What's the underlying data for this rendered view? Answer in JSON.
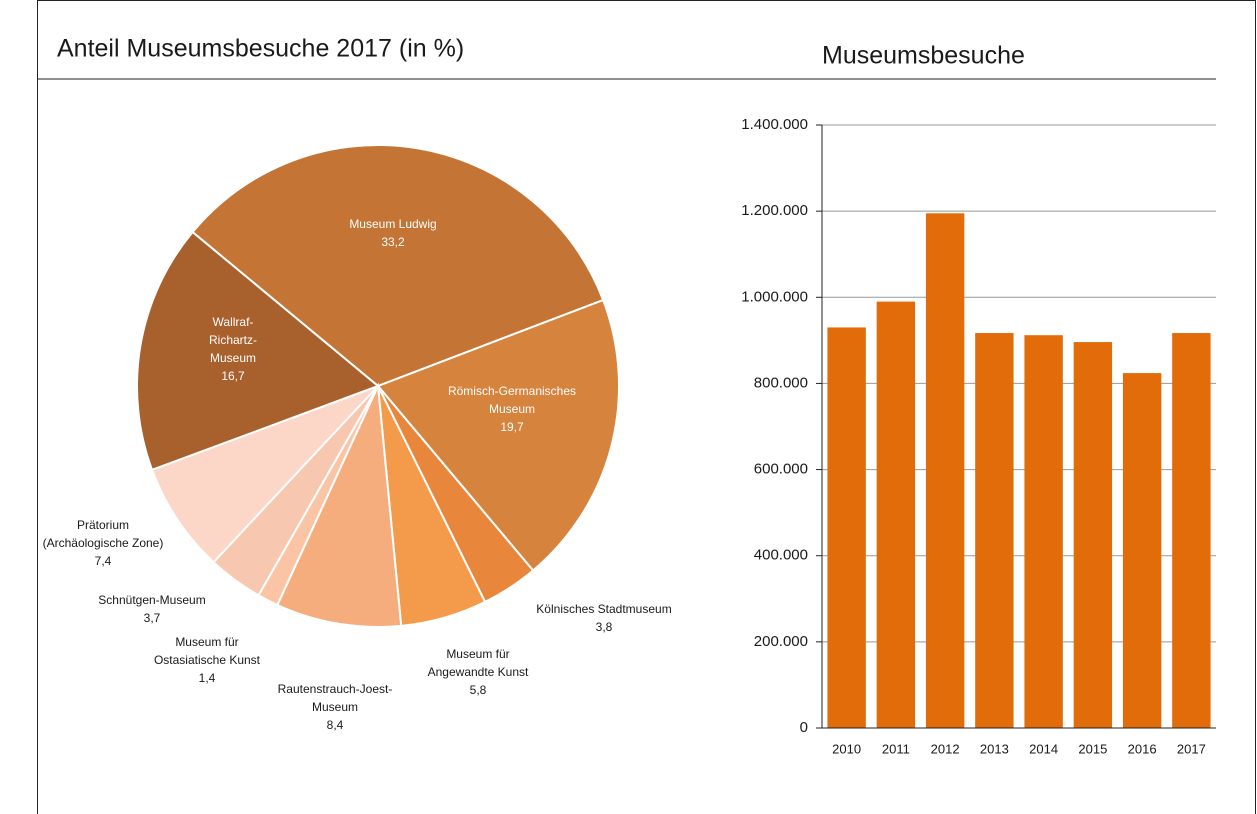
{
  "chart_data": [
    {
      "type": "pie",
      "title": "Anteil Museumsbesuche 2017 (in %)",
      "categories": [
        [
          "Museum Ludwig"
        ],
        [
          "Römisch-Germanisches",
          "Museum"
        ],
        [
          "Kölnisches Stadtmuseum"
        ],
        [
          "Museum für",
          "Angewandte Kunst"
        ],
        [
          "Rautenstrauch-Joest-",
          "Museum"
        ],
        [
          "Museum für",
          "Ostasiatische Kunst"
        ],
        [
          "Schnütgen-Museum"
        ],
        [
          "Prätorium",
          "(Archäologische Zone)"
        ],
        [
          "Wallraf-",
          "Richartz-",
          "Museum"
        ]
      ],
      "values": [
        33.2,
        19.7,
        3.8,
        5.8,
        8.4,
        1.4,
        3.7,
        7.4,
        16.7
      ],
      "value_labels": [
        "33,2",
        "19,7",
        "3,8",
        "5,8",
        "8,4",
        "1,4",
        "3,7",
        "7,4",
        "16,7"
      ],
      "colors": [
        "#c47535",
        "#d6833e",
        "#e8873b",
        "#f49a4b",
        "#f6ad7d",
        "#fbc5a5",
        "#f8c7b0",
        "#fcd6c6",
        "#a8612d"
      ]
    },
    {
      "type": "bar",
      "title": "Museumsbesuche",
      "categories": [
        "2010",
        "2011",
        "2012",
        "2013",
        "2014",
        "2015",
        "2016",
        "2017"
      ],
      "values": [
        930000,
        990000,
        1195000,
        917000,
        912000,
        896000,
        824000,
        917000
      ],
      "color": "#e36c0a",
      "ylim": [
        0,
        1400000
      ],
      "yticks": [
        0,
        {
          "value": 200000,
          "label": "200.000"
        },
        {
          "value": 400000,
          "label": "400.000"
        },
        {
          "value": 600000,
          "label": "600.000"
        },
        {
          "value": 800000,
          "label": "800.000"
        },
        {
          "value": 1000000,
          "label": "1.000.000"
        },
        {
          "value": 1200000,
          "label": "1.200.000"
        },
        {
          "value": 1400000,
          "label": "1.400.000"
        }
      ],
      "grid": true
    }
  ]
}
